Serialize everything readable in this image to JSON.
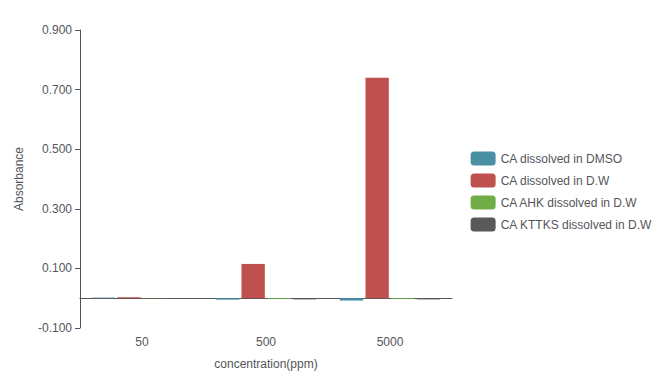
{
  "chart_data": {
    "type": "bar",
    "categories": [
      "50",
      "500",
      "5000"
    ],
    "series": [
      {
        "name": "CA dissolved in DMSO",
        "color": "#4A90A4",
        "values": [
          0.002,
          -0.005,
          -0.008
        ]
      },
      {
        "name": "CA dissolved in D.W",
        "color": "#C0504D",
        "values": [
          0.003,
          0.115,
          0.74
        ]
      },
      {
        "name": "CA AHK dissolved in D.W",
        "color": "#70AD47",
        "values": [
          0.001,
          -0.003,
          -0.003
        ]
      },
      {
        "name": "CA KTTKS dissolved in D.W",
        "color": "#595959",
        "values": [
          0.001,
          -0.004,
          -0.004
        ]
      }
    ],
    "xlabel": "concentration(ppm)",
    "ylabel": "Absorbance",
    "ylim": [
      -0.1,
      0.9
    ],
    "yticks": [
      {
        "value": -0.1,
        "label": "-0.100"
      },
      {
        "value": 0.1,
        "label": "0.100"
      },
      {
        "value": 0.3,
        "label": "0.300"
      },
      {
        "value": 0.5,
        "label": "0.500"
      },
      {
        "value": 0.7,
        "label": "0.700"
      },
      {
        "value": 0.9,
        "label": "0.900"
      }
    ],
    "grid": false,
    "legend": "right"
  }
}
